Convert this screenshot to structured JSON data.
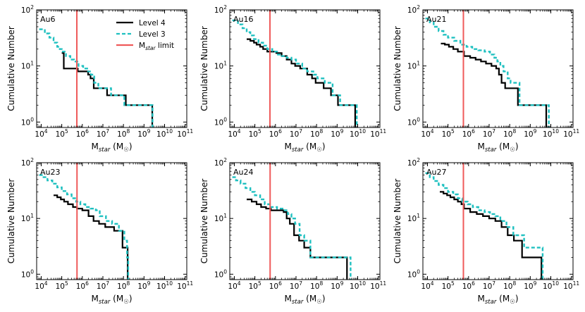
{
  "chart_data": [
    {
      "type": "line",
      "panel_label": "Au6",
      "xlabel": "M_star (M_sun)",
      "ylabel": "Cumulative Number",
      "x_scale": "log",
      "y_scale": "log",
      "xlim": [
        6000,
        120000000000.0
      ],
      "ylim": [
        0.8,
        100
      ],
      "x_ticks": [
        "10^4",
        "10^5",
        "10^6",
        "10^7",
        "10^8",
        "10^9",
        "10^10",
        "10^11"
      ],
      "y_ticks": [
        "10^0",
        "10^1",
        "10^2"
      ],
      "vline": {
        "name": "M_star limit",
        "x": 540000
      },
      "series": [
        {
          "name": "Level 4",
          "color": "#000000",
          "style": "solid",
          "x": [
            100000.0,
            125000.0,
            540000.0,
            600000.0,
            1100000.0,
            1900000.0,
            2500000.0,
            3600000.0,
            6000000.0,
            16000000.0,
            30000000.0,
            130000000.0,
            2500000000.0
          ],
          "y": [
            17,
            9,
            9,
            8,
            8,
            7,
            6,
            4,
            4,
            3,
            3,
            2,
            1
          ]
        },
        {
          "name": "Level 3",
          "color": "#1fc0c0",
          "style": "dashed",
          "x": [
            8000.0,
            15000.0,
            25000.0,
            40000.0,
            60000.0,
            80000.0,
            100000.0,
            160000.0,
            260000.0,
            400000.0,
            650000.0,
            1100000.0,
            1900000.0,
            2600000.0,
            3800000.0,
            6000000.0,
            12000000.0,
            25000000.0,
            110000000.0,
            2600000000.0
          ],
          "y": [
            45,
            38,
            32,
            26,
            22,
            20,
            18,
            15,
            13,
            12,
            10,
            9,
            8,
            7,
            5,
            4,
            4,
            3,
            2,
            1
          ]
        }
      ]
    },
    {
      "type": "line",
      "panel_label": "Au16",
      "xlabel": "M_star (M_sun)",
      "ylabel": "Cumulative Number",
      "x_scale": "log",
      "y_scale": "log",
      "xlim": [
        6000,
        120000000000.0
      ],
      "ylim": [
        0.8,
        100
      ],
      "x_ticks": [
        "10^4",
        "10^5",
        "10^6",
        "10^7",
        "10^8",
        "10^9",
        "10^10",
        "10^11"
      ],
      "y_ticks": [
        "10^0",
        "10^1",
        "10^2"
      ],
      "vline": {
        "name": "M_star limit",
        "x": 540000
      },
      "series": [
        {
          "name": "Level 4",
          "color": "#000000",
          "style": "solid",
          "x": [
            40000.0,
            60000.0,
            90000.0,
            120000.0,
            180000.0,
            250000.0,
            400000.0,
            1100000.0,
            2000000.0,
            3500000.0,
            6000000.0,
            9000000.0,
            16000000.0,
            35000000.0,
            60000000.0,
            90000000.0,
            220000000.0,
            500000000.0,
            1100000000.0,
            7500000000.0
          ],
          "y": [
            30,
            28,
            26,
            24,
            22,
            20,
            18,
            17,
            15,
            13,
            11,
            10,
            9,
            7,
            6,
            5,
            4,
            3,
            2,
            1
          ]
        },
        {
          "name": "Level 3",
          "color": "#1fc0c0",
          "style": "dashed",
          "x": [
            8000.0,
            15000.0,
            25000.0,
            40000.0,
            60000.0,
            90000.0,
            150000.0,
            250000.0,
            400000.0,
            700000.0,
            1200000.0,
            2000000.0,
            3500000.0,
            6000000.0,
            10000000.0,
            20000000.0,
            35000000.0,
            70000000.0,
            110000000.0,
            250000000.0,
            600000000.0,
            1400000000.0,
            9000000000.0
          ],
          "y": [
            65,
            55,
            47,
            40,
            35,
            30,
            26,
            23,
            20,
            18,
            16,
            15,
            14,
            13,
            11,
            9,
            8,
            7,
            6,
            5,
            3,
            2,
            1
          ]
        }
      ]
    },
    {
      "type": "line",
      "panel_label": "Au21",
      "xlabel": "M_star (M_sun)",
      "ylabel": "Cumulative Number",
      "x_scale": "log",
      "y_scale": "log",
      "xlim": [
        6000,
        120000000000.0
      ],
      "ylim": [
        0.8,
        100
      ],
      "x_ticks": [
        "10^4",
        "10^5",
        "10^6",
        "10^7",
        "10^8",
        "10^9",
        "10^10",
        "10^11"
      ],
      "y_ticks": [
        "10^0",
        "10^1",
        "10^2"
      ],
      "vline": {
        "name": "M_star limit",
        "x": 560000
      },
      "series": [
        {
          "name": "Level 4",
          "color": "#000000",
          "style": "solid",
          "x": [
            45000.0,
            70000.0,
            110000.0,
            180000.0,
            300000.0,
            600000.0,
            1200000.0,
            2200000.0,
            4000000.0,
            7000000.0,
            13000000.0,
            22000000.0,
            30000000.0,
            40000000.0,
            60000000.0,
            250000000.0,
            6000000000.0
          ],
          "y": [
            25,
            24,
            22,
            20,
            18,
            15,
            14,
            13,
            12,
            11,
            10,
            9,
            7,
            5,
            4,
            2,
            1
          ]
        },
        {
          "name": "Level 3",
          "color": "#1fc0c0",
          "style": "dashed",
          "x": [
            8000.0,
            13000.0,
            20000.0,
            35000.0,
            60000.0,
            100000.0,
            200000.0,
            400000.0,
            800000.0,
            1500000.0,
            3000000.0,
            6000000.0,
            11000000.0,
            18000000.0,
            25000000.0,
            35000000.0,
            50000000.0,
            80000000.0,
            110000000.0,
            300000000.0,
            8000000000.0
          ],
          "y": [
            70,
            60,
            50,
            42,
            36,
            32,
            28,
            24,
            22,
            20,
            19,
            18,
            16,
            14,
            12,
            10,
            8,
            6,
            5,
            2,
            1
          ]
        }
      ]
    },
    {
      "type": "line",
      "panel_label": "Au23",
      "xlabel": "M_star (M_sun)",
      "ylabel": "Cumulative Number",
      "x_scale": "log",
      "y_scale": "log",
      "xlim": [
        6000,
        120000000000.0
      ],
      "ylim": [
        0.8,
        100
      ],
      "x_ticks": [
        "10^4",
        "10^5",
        "10^6",
        "10^7",
        "10^8",
        "10^9",
        "10^10",
        "10^11"
      ],
      "y_ticks": [
        "10^0",
        "10^1",
        "10^2"
      ],
      "vline": {
        "name": "M_star limit",
        "x": 550000
      },
      "series": [
        {
          "name": "Level 4",
          "color": "#000000",
          "style": "solid",
          "x": [
            40000.0,
            60000.0,
            90000.0,
            130000.0,
            200000.0,
            350000.0,
            550000.0,
            1000000.0,
            2000000.0,
            3500000.0,
            6500000.0,
            13000000.0,
            35000000.0,
            90000000.0,
            160000000.0
          ],
          "y": [
            26,
            24,
            22,
            20,
            18,
            16,
            15,
            14,
            11,
            9,
            8,
            7,
            6,
            3,
            1
          ]
        },
        {
          "name": "Level 3",
          "color": "#1fc0c0",
          "style": "dashed",
          "x": [
            8000.0,
            13000.0,
            20000.0,
            35000.0,
            60000.0,
            100000.0,
            180000.0,
            300000.0,
            500000.0,
            800000.0,
            1400000.0,
            2500000.0,
            4500000.0,
            7000000.0,
            14000000.0,
            28000000.0,
            60000000.0,
            110000000.0,
            150000000.0,
            170000000.0
          ],
          "y": [
            60,
            55,
            48,
            42,
            36,
            31,
            27,
            23,
            20,
            18,
            16,
            15,
            14,
            11,
            9,
            8,
            6,
            4,
            2,
            1
          ]
        }
      ]
    },
    {
      "type": "line",
      "panel_label": "Au24",
      "xlabel": "M_star (M_sun)",
      "ylabel": "Cumulative Number",
      "x_scale": "log",
      "y_scale": "log",
      "xlim": [
        6000,
        120000000000.0
      ],
      "ylim": [
        0.8,
        100
      ],
      "x_ticks": [
        "10^4",
        "10^5",
        "10^6",
        "10^7",
        "10^8",
        "10^9",
        "10^10",
        "10^11"
      ],
      "y_ticks": [
        "10^0",
        "10^1",
        "10^2"
      ],
      "vline": {
        "name": "M_star limit",
        "x": 550000
      },
      "series": [
        {
          "name": "Level 4",
          "color": "#000000",
          "style": "solid",
          "x": [
            40000.0,
            70000.0,
            120000.0,
            200000.0,
            350000.0,
            600000.0,
            1200000.0,
            2500000.0,
            3500000.0,
            5000000.0,
            8000000.0,
            14000000.0,
            25000000.0,
            50000000.0,
            3000000000.0
          ],
          "y": [
            22,
            20,
            18,
            16,
            15,
            14,
            14,
            13,
            10,
            8,
            5,
            4,
            3,
            2,
            1
          ]
        },
        {
          "name": "Level 3",
          "color": "#1fc0c0",
          "style": "dashed",
          "x": [
            8000.0,
            12000.0,
            20000.0,
            35000.0,
            60000.0,
            100000.0,
            180000.0,
            300000.0,
            600000.0,
            1200000.0,
            2500000.0,
            4000000.0,
            6000000.0,
            9000000.0,
            15000000.0,
            25000000.0,
            50000000.0,
            4500000000.0
          ],
          "y": [
            55,
            48,
            42,
            35,
            30,
            26,
            22,
            18,
            16,
            15,
            14,
            12,
            10,
            8,
            5,
            4,
            2,
            1
          ]
        }
      ]
    },
    {
      "type": "line",
      "panel_label": "Au27",
      "xlabel": "M_star (M_sun)",
      "ylabel": "Cumulative Number",
      "x_scale": "log",
      "y_scale": "log",
      "xlim": [
        6000,
        120000000000.0
      ],
      "ylim": [
        0.8,
        100
      ],
      "x_ticks": [
        "10^4",
        "10^5",
        "10^6",
        "10^7",
        "10^8",
        "10^9",
        "10^10",
        "10^11"
      ],
      "y_ticks": [
        "10^0",
        "10^1",
        "10^2"
      ],
      "vline": {
        "name": "M_star limit",
        "x": 560000
      },
      "series": [
        {
          "name": "Level 4",
          "color": "#000000",
          "style": "solid",
          "x": [
            40000.0,
            60000.0,
            90000.0,
            130000.0,
            200000.0,
            300000.0,
            450000.0,
            600000.0,
            1200000.0,
            2500000.0,
            5000000.0,
            10000000.0,
            20000000.0,
            40000000.0,
            80000000.0,
            160000000.0,
            400000000.0,
            3500000000.0
          ],
          "y": [
            30,
            28,
            26,
            24,
            22,
            20,
            18,
            15,
            13,
            12,
            11,
            10,
            9,
            7,
            5,
            4,
            2,
            1
          ]
        },
        {
          "name": "Level 3",
          "color": "#1fc0c0",
          "style": "dashed",
          "x": [
            8000.0,
            13000.0,
            20000.0,
            35000.0,
            60000.0,
            100000.0,
            180000.0,
            300000.0,
            500000.0,
            900000.0,
            1600000.0,
            3000000.0,
            6000000.0,
            11000000.0,
            20000000.0,
            35000000.0,
            70000000.0,
            150000000.0,
            500000000.0,
            4000000000.0
          ],
          "y": [
            65,
            55,
            47,
            40,
            35,
            30,
            27,
            23,
            20,
            18,
            16,
            14,
            13,
            12,
            11,
            9,
            7,
            5,
            3,
            1
          ]
        }
      ]
    }
  ],
  "legend": {
    "items": [
      {
        "label": "Level 4",
        "color": "#000000",
        "style": "solid"
      },
      {
        "label": "Level 3",
        "color": "#1fc0c0",
        "style": "dashed"
      },
      {
        "label": "M_star limit",
        "color": "#ef5a5a",
        "style": "solid"
      }
    ]
  },
  "axis_text": {
    "ylabel": "Cumulative Number",
    "xlabel_main": "M",
    "xlabel_sub": "star",
    "xlabel_unit": " (M",
    "xlabel_sun": "☉",
    "xlabel_close": ")"
  }
}
